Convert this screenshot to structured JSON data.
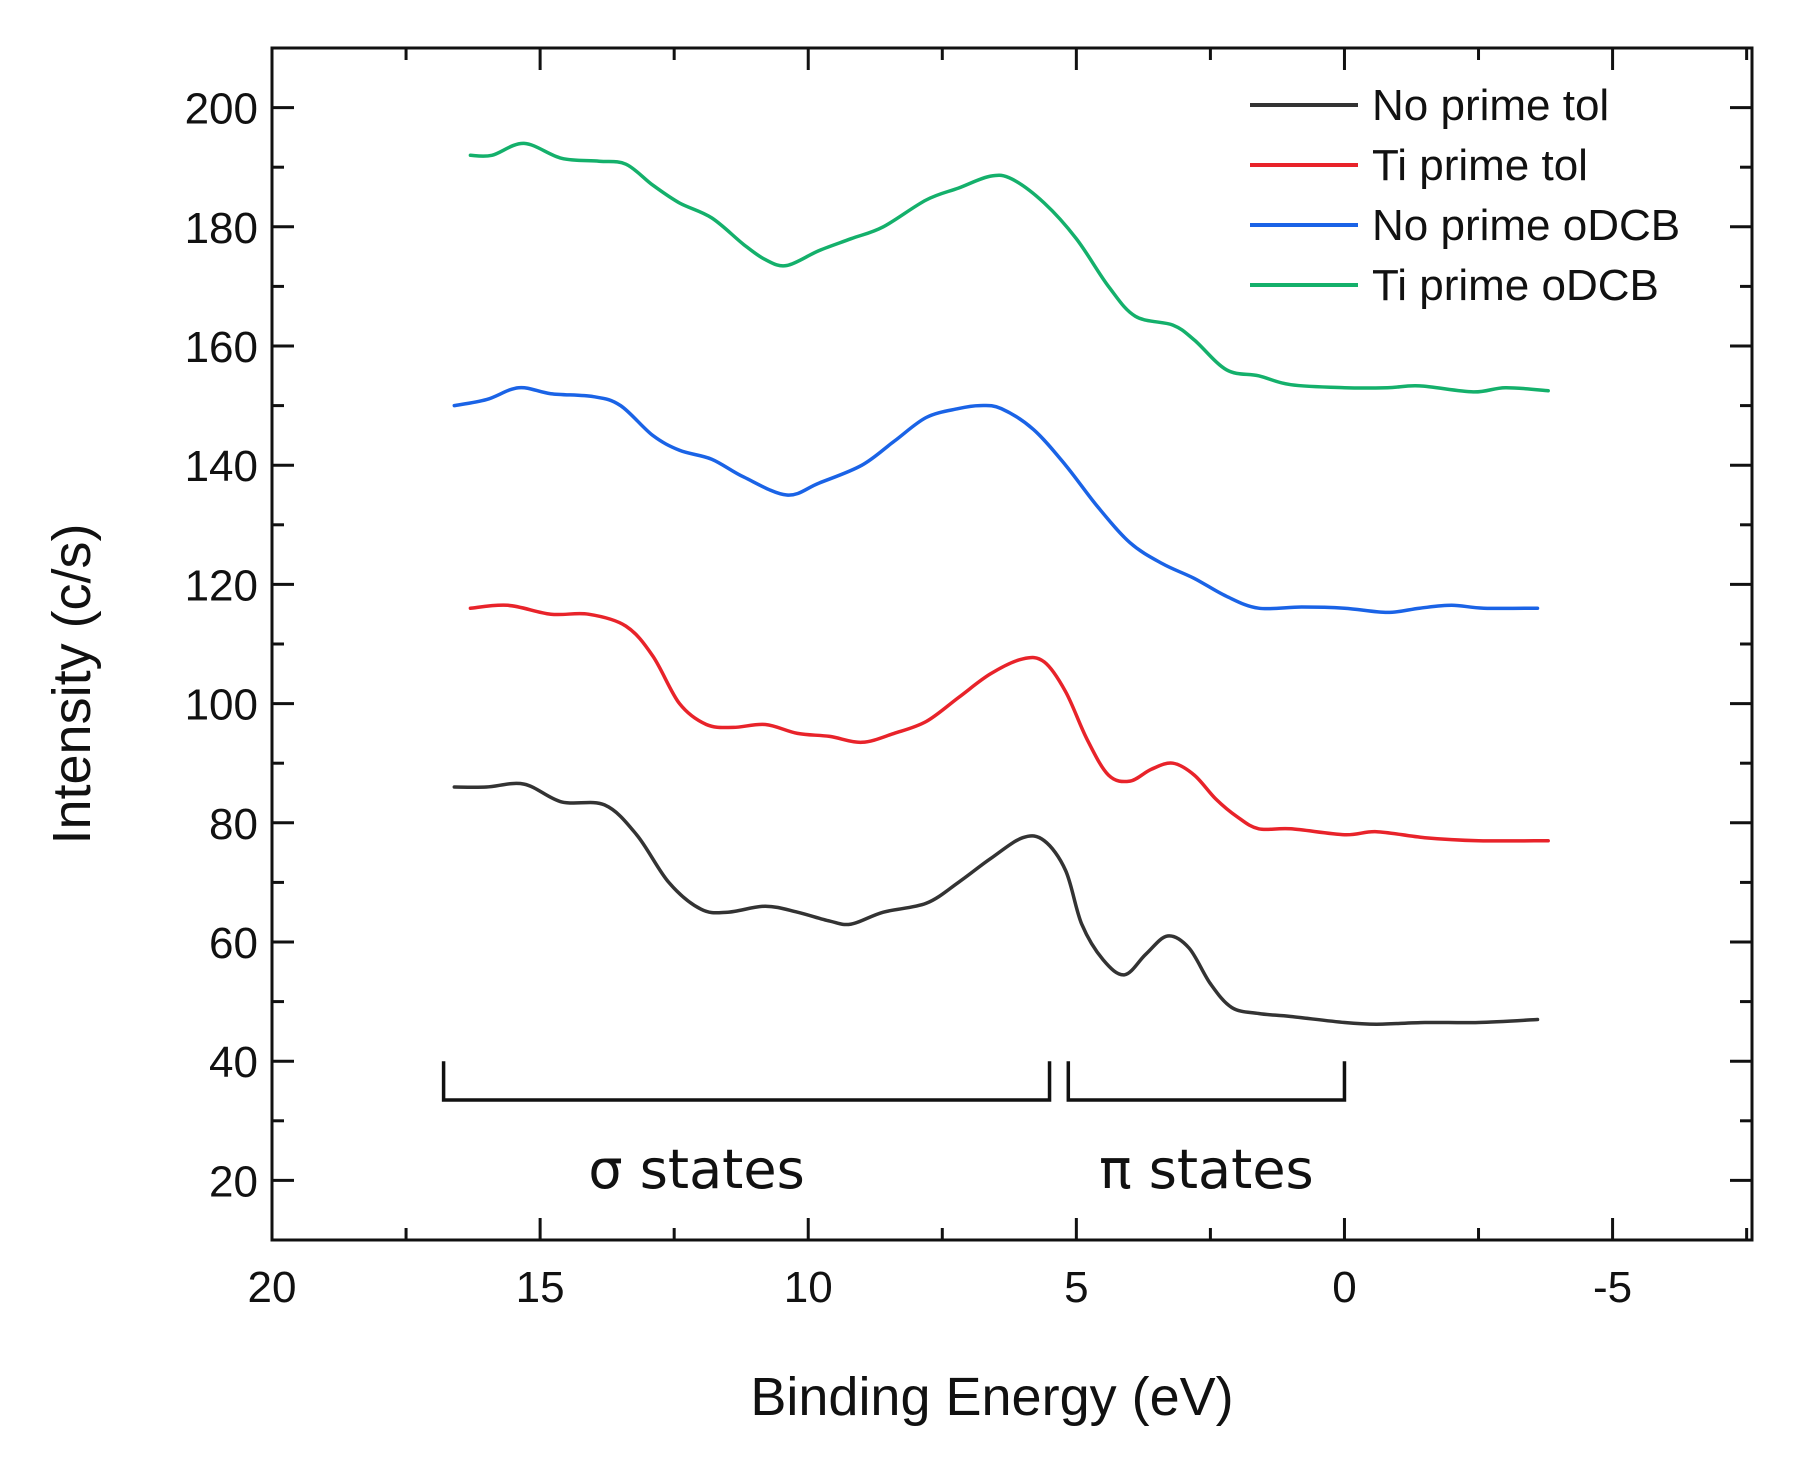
{
  "chart_data": {
    "type": "line",
    "xlabel": "Binding Energy (eV)",
    "ylabel": "Intensity (c/s)",
    "xlim": [
      20,
      -7.6
    ],
    "ylim": [
      10,
      210
    ],
    "x_axis_reversed": true,
    "x_ticks": [
      20,
      15,
      10,
      5,
      0,
      -5
    ],
    "y_ticks": [
      20,
      40,
      60,
      80,
      100,
      120,
      140,
      160,
      180,
      200
    ],
    "x_tick_labels": [
      "20",
      "15",
      "10",
      "5",
      "0",
      "-5"
    ],
    "y_tick_labels": [
      "20",
      "40",
      "60",
      "80",
      "100",
      "120",
      "140",
      "160",
      "180",
      "200"
    ],
    "grid": false,
    "legend_position": "top-right",
    "series": [
      {
        "name": "No prime tol",
        "color": "#333333",
        "points": [
          [
            16.6,
            86
          ],
          [
            16.0,
            86
          ],
          [
            15.3,
            86.5
          ],
          [
            14.6,
            83.5
          ],
          [
            13.8,
            83
          ],
          [
            13.2,
            78
          ],
          [
            12.6,
            70
          ],
          [
            12.0,
            65.5
          ],
          [
            11.5,
            65
          ],
          [
            10.8,
            66
          ],
          [
            10.2,
            65
          ],
          [
            9.6,
            63.5
          ],
          [
            9.2,
            63
          ],
          [
            8.6,
            65
          ],
          [
            7.8,
            66.5
          ],
          [
            7.2,
            70
          ],
          [
            6.6,
            74
          ],
          [
            6.0,
            77.5
          ],
          [
            5.6,
            77
          ],
          [
            5.2,
            72
          ],
          [
            4.9,
            63
          ],
          [
            4.5,
            57
          ],
          [
            4.1,
            54.5
          ],
          [
            3.7,
            58
          ],
          [
            3.3,
            61
          ],
          [
            2.9,
            59
          ],
          [
            2.5,
            53
          ],
          [
            2.1,
            49
          ],
          [
            1.6,
            48
          ],
          [
            1.0,
            47.5
          ],
          [
            0.0,
            46.5
          ],
          [
            -0.6,
            46.2
          ],
          [
            -1.5,
            46.5
          ],
          [
            -2.5,
            46.5
          ],
          [
            -3.6,
            47
          ]
        ]
      },
      {
        "name": "Ti prime tol",
        "color": "#e8232a",
        "points": [
          [
            16.3,
            116
          ],
          [
            15.6,
            116.5
          ],
          [
            14.8,
            115
          ],
          [
            14.1,
            115
          ],
          [
            13.4,
            113
          ],
          [
            12.9,
            108
          ],
          [
            12.4,
            100
          ],
          [
            11.9,
            96.5
          ],
          [
            11.4,
            96
          ],
          [
            10.8,
            96.5
          ],
          [
            10.2,
            95
          ],
          [
            9.6,
            94.5
          ],
          [
            9.0,
            93.5
          ],
          [
            8.4,
            95
          ],
          [
            7.8,
            97
          ],
          [
            7.2,
            101
          ],
          [
            6.6,
            105
          ],
          [
            6.0,
            107.5
          ],
          [
            5.6,
            107
          ],
          [
            5.2,
            102
          ],
          [
            4.8,
            94
          ],
          [
            4.4,
            88
          ],
          [
            4.0,
            87
          ],
          [
            3.6,
            89
          ],
          [
            3.2,
            90
          ],
          [
            2.8,
            88
          ],
          [
            2.4,
            84
          ],
          [
            2.0,
            81
          ],
          [
            1.6,
            79
          ],
          [
            1.0,
            79
          ],
          [
            0.0,
            78
          ],
          [
            -0.6,
            78.5
          ],
          [
            -1.5,
            77.5
          ],
          [
            -2.5,
            77
          ],
          [
            -3.8,
            77
          ]
        ]
      },
      {
        "name": "No prime oDCB",
        "color": "#1a63e6",
        "points": [
          [
            16.6,
            150
          ],
          [
            16.0,
            151
          ],
          [
            15.4,
            153
          ],
          [
            14.8,
            152
          ],
          [
            14.0,
            151.5
          ],
          [
            13.5,
            150
          ],
          [
            12.9,
            145
          ],
          [
            12.4,
            142.5
          ],
          [
            11.8,
            141
          ],
          [
            11.2,
            138
          ],
          [
            10.4,
            135
          ],
          [
            9.8,
            137
          ],
          [
            9.0,
            140
          ],
          [
            8.4,
            144
          ],
          [
            7.8,
            148
          ],
          [
            7.2,
            149.5
          ],
          [
            6.8,
            150
          ],
          [
            6.4,
            149.5
          ],
          [
            5.8,
            146
          ],
          [
            5.2,
            140
          ],
          [
            4.6,
            133
          ],
          [
            4.0,
            127
          ],
          [
            3.4,
            123.5
          ],
          [
            2.8,
            121
          ],
          [
            2.2,
            118
          ],
          [
            1.6,
            116
          ],
          [
            0.8,
            116.2
          ],
          [
            0.0,
            116
          ],
          [
            -0.8,
            115.3
          ],
          [
            -1.4,
            116
          ],
          [
            -2.0,
            116.5
          ],
          [
            -2.6,
            116
          ],
          [
            -3.6,
            116
          ]
        ]
      },
      {
        "name": "Ti prime oDCB",
        "color": "#14b06b",
        "points": [
          [
            16.3,
            192
          ],
          [
            15.9,
            192
          ],
          [
            15.3,
            194
          ],
          [
            14.6,
            191.5
          ],
          [
            13.9,
            191
          ],
          [
            13.4,
            190.5
          ],
          [
            12.9,
            187
          ],
          [
            12.4,
            184
          ],
          [
            11.8,
            181.5
          ],
          [
            11.2,
            177
          ],
          [
            10.8,
            174.5
          ],
          [
            10.4,
            173.5
          ],
          [
            9.8,
            176
          ],
          [
            9.2,
            178
          ],
          [
            8.6,
            180
          ],
          [
            7.8,
            184.5
          ],
          [
            7.2,
            186.5
          ],
          [
            6.6,
            188.5
          ],
          [
            6.2,
            188
          ],
          [
            5.6,
            184
          ],
          [
            5.0,
            178
          ],
          [
            4.4,
            170
          ],
          [
            3.9,
            165
          ],
          [
            3.2,
            163.5
          ],
          [
            2.8,
            161
          ],
          [
            2.2,
            156
          ],
          [
            1.6,
            155
          ],
          [
            1.0,
            153.5
          ],
          [
            0.0,
            153
          ],
          [
            -0.8,
            153
          ],
          [
            -1.4,
            153.3
          ],
          [
            -2.4,
            152.3
          ],
          [
            -3.0,
            153
          ],
          [
            -3.8,
            152.5
          ]
        ]
      }
    ],
    "annotations": [
      {
        "label": "σ states",
        "x_start": 16.8,
        "x_end": 5.5,
        "y_top": 40,
        "y_bottom": 33.5
      },
      {
        "label": "π states",
        "x_start": 5.15,
        "x_end": 0.0,
        "y_top": 40,
        "y_bottom": 33.5
      }
    ]
  }
}
